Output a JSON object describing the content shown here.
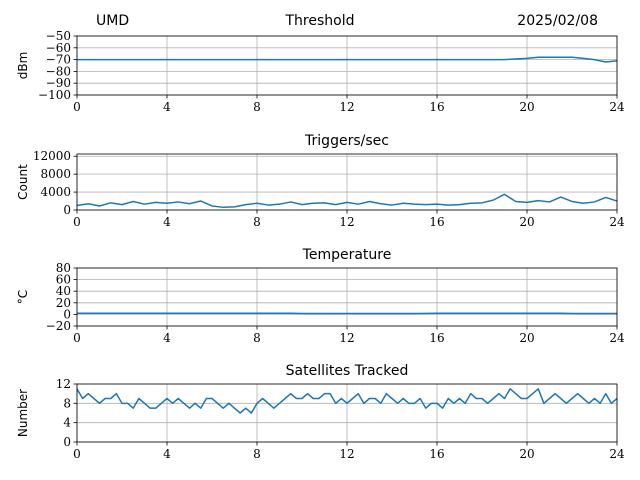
{
  "header": {
    "site": "UMD",
    "title": "Threshold",
    "date": "2025/02/08"
  },
  "colors": {
    "series": "#1f77b4",
    "grid": "#b0b0b0",
    "axis": "#000000"
  },
  "chart_data": [
    {
      "type": "line",
      "title": "",
      "xlabel": "",
      "ylabel": "dBm",
      "xlim": [
        0,
        24
      ],
      "ylim": [
        -100,
        -50
      ],
      "xticks": [
        0,
        4,
        8,
        12,
        16,
        20,
        24
      ],
      "yticks": [
        -100,
        -90,
        -80,
        -70,
        -60,
        -50
      ],
      "ytick_labels": [
        "−100",
        "−90",
        "−80",
        "−70",
        "−60",
        "−50"
      ],
      "grid": true,
      "series": [
        {
          "x": [
            0,
            1,
            2,
            3,
            4,
            5,
            6,
            7,
            8,
            9,
            10,
            11,
            12,
            13,
            14,
            15,
            16,
            17,
            18,
            19,
            20,
            20.5,
            21,
            21.5,
            22,
            22.5,
            23,
            23.5,
            24
          ],
          "values": [
            -70,
            -70,
            -70,
            -70,
            -70,
            -70,
            -70,
            -70,
            -70,
            -70,
            -70,
            -70,
            -70,
            -70,
            -70,
            -70,
            -70,
            -70,
            -70,
            -70,
            -69,
            -68,
            -68,
            -68,
            -68,
            -69,
            -70,
            -72,
            -71
          ]
        }
      ]
    },
    {
      "type": "line",
      "title": "Triggers/sec",
      "xlabel": "",
      "ylabel": "Count",
      "xlim": [
        0,
        24
      ],
      "ylim": [
        0,
        12500
      ],
      "xticks": [
        0,
        4,
        8,
        12,
        16,
        20,
        24
      ],
      "yticks": [
        0,
        4000,
        8000,
        12000
      ],
      "ytick_labels": [
        "0",
        "4000",
        "8000",
        "12000"
      ],
      "grid": true,
      "series": [
        {
          "x": [
            0,
            0.5,
            1,
            1.5,
            2,
            2.5,
            3,
            3.5,
            4,
            4.5,
            5,
            5.5,
            6,
            6.5,
            7,
            7.5,
            8,
            8.5,
            9,
            9.5,
            10,
            10.5,
            11,
            11.5,
            12,
            12.5,
            13,
            13.5,
            14,
            14.5,
            15,
            15.5,
            16,
            16.5,
            17,
            17.5,
            18,
            18.5,
            19,
            19.5,
            20,
            20.5,
            21,
            21.5,
            22,
            22.5,
            23,
            23.5,
            24
          ],
          "values": [
            1000,
            1400,
            900,
            1600,
            1200,
            1900,
            1300,
            1700,
            1500,
            1800,
            1400,
            2000,
            900,
            600,
            700,
            1200,
            1500,
            1100,
            1300,
            1800,
            1200,
            1500,
            1600,
            1200,
            1700,
            1300,
            1900,
            1400,
            1100,
            1500,
            1300,
            1200,
            1300,
            1100,
            1200,
            1500,
            1600,
            2200,
            3500,
            1900,
            1700,
            2100,
            1800,
            2900,
            1900,
            1500,
            1800,
            2800,
            2000
          ]
        }
      ]
    },
    {
      "type": "line",
      "title": "Temperature",
      "xlabel": "",
      "ylabel": "°C",
      "xlim": [
        0,
        24
      ],
      "ylim": [
        -20,
        80
      ],
      "xticks": [
        0,
        4,
        8,
        12,
        16,
        20,
        24
      ],
      "yticks": [
        -20,
        0,
        20,
        40,
        60,
        80
      ],
      "ytick_labels": [
        "−20",
        "0",
        "20",
        "40",
        "60",
        "80"
      ],
      "grid": true,
      "series": [
        {
          "x": [
            0,
            2,
            4,
            6,
            8,
            9.5,
            10,
            12,
            14,
            15.2,
            16,
            18,
            20,
            21.5,
            22,
            24
          ],
          "values": [
            2,
            2,
            2,
            2,
            2,
            2,
            1.5,
            1.5,
            1.5,
            1.5,
            2,
            2,
            2,
            2,
            1.5,
            1.5
          ]
        }
      ]
    },
    {
      "type": "line",
      "title": "Satellites Tracked",
      "xlabel": "",
      "ylabel": "Number",
      "xlim": [
        0,
        24
      ],
      "ylim": [
        0,
        12
      ],
      "xticks": [
        0,
        4,
        8,
        12,
        16,
        20,
        24
      ],
      "yticks": [
        0,
        4,
        8,
        12
      ],
      "ytick_labels": [
        "0",
        "4",
        "8",
        "12"
      ],
      "grid": true,
      "series": [
        {
          "x": [
            0,
            0.25,
            0.5,
            0.75,
            1,
            1.25,
            1.5,
            1.75,
            2,
            2.25,
            2.5,
            2.75,
            3,
            3.25,
            3.5,
            3.75,
            4,
            4.25,
            4.5,
            4.75,
            5,
            5.25,
            5.5,
            5.75,
            6,
            6.25,
            6.5,
            6.75,
            7,
            7.25,
            7.5,
            7.75,
            8,
            8.25,
            8.5,
            8.75,
            9,
            9.25,
            9.5,
            9.75,
            10,
            10.25,
            10.5,
            10.75,
            11,
            11.25,
            11.5,
            11.75,
            12,
            12.25,
            12.5,
            12.75,
            13,
            13.25,
            13.5,
            13.75,
            14,
            14.25,
            14.5,
            14.75,
            15,
            15.25,
            15.5,
            15.75,
            16,
            16.25,
            16.5,
            16.75,
            17,
            17.25,
            17.5,
            17.75,
            18,
            18.25,
            18.5,
            18.75,
            19,
            19.25,
            19.5,
            19.75,
            20,
            20.25,
            20.5,
            20.75,
            21,
            21.25,
            21.5,
            21.75,
            22,
            22.25,
            22.5,
            22.75,
            23,
            23.25,
            23.5,
            23.75,
            24
          ],
          "values": [
            11,
            9,
            10,
            9,
            8,
            9,
            9,
            10,
            8,
            8,
            7,
            9,
            8,
            7,
            7,
            8,
            9,
            8,
            9,
            8,
            7,
            8,
            7,
            9,
            9,
            8,
            7,
            8,
            7,
            6,
            7,
            6,
            8,
            9,
            8,
            7,
            8,
            9,
            10,
            9,
            9,
            10,
            9,
            9,
            10,
            10,
            8,
            9,
            8,
            9,
            10,
            8,
            9,
            9,
            8,
            10,
            9,
            8,
            9,
            8,
            8,
            9,
            7,
            8,
            8,
            7,
            9,
            8,
            9,
            8,
            10,
            9,
            9,
            8,
            9,
            10,
            9,
            11,
            10,
            9,
            9,
            10,
            11,
            8,
            9,
            10,
            9,
            8,
            9,
            10,
            9,
            8,
            9,
            8,
            10,
            8,
            9
          ]
        }
      ]
    }
  ]
}
